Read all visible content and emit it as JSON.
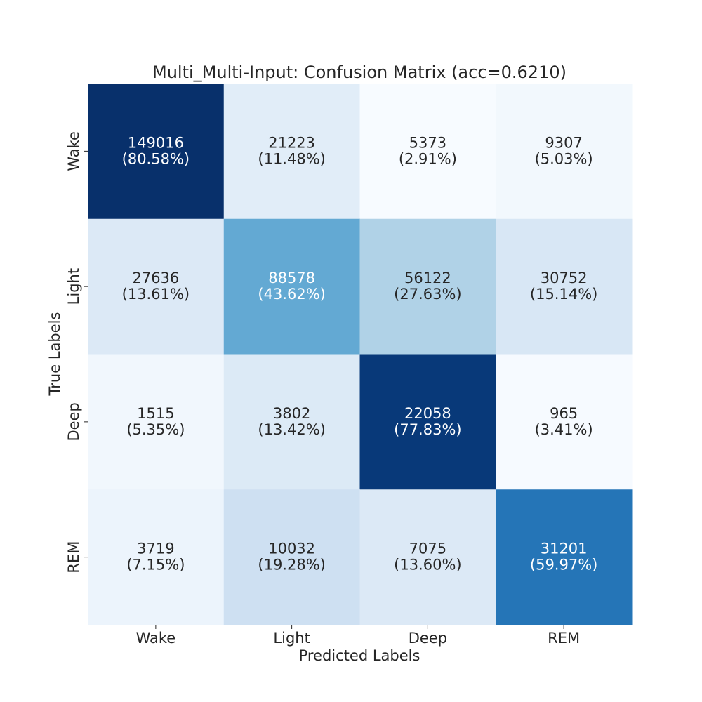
{
  "chart_data": {
    "type": "heatmap",
    "title": "Multi_Multi-Input: Confusion Matrix (acc=0.6210)",
    "xlabel": "Predicted Labels",
    "ylabel": "True Labels",
    "x_categories": [
      "Wake",
      "Light",
      "Deep",
      "REM"
    ],
    "y_categories": [
      "Wake",
      "Light",
      "Deep",
      "REM"
    ],
    "counts": [
      [
        149016,
        21223,
        5373,
        9307
      ],
      [
        27636,
        88578,
        56122,
        30752
      ],
      [
        1515,
        3802,
        22058,
        965
      ],
      [
        3719,
        10032,
        7075,
        31201
      ]
    ],
    "percent_labels": [
      [
        "(80.58%)",
        "(11.48%)",
        "(2.91%)",
        "(5.03%)"
      ],
      [
        "(13.61%)",
        "(43.62%)",
        "(27.63%)",
        "(15.14%)"
      ],
      [
        "(5.35%)",
        "(13.42%)",
        "(77.83%)",
        "(3.41%)"
      ],
      [
        "(7.15%)",
        "(19.28%)",
        "(13.60%)",
        "(59.97%)"
      ]
    ],
    "row_percentages": [
      [
        80.58,
        11.48,
        2.91,
        5.03
      ],
      [
        13.61,
        43.62,
        27.63,
        15.14
      ],
      [
        5.35,
        13.42,
        77.83,
        3.41
      ],
      [
        7.15,
        19.28,
        13.6,
        59.97
      ]
    ],
    "colormap": "Blues",
    "colorbar": false,
    "grid": false,
    "colors": {
      "dark_text": "#262626",
      "light_text": "#ffffff"
    }
  }
}
